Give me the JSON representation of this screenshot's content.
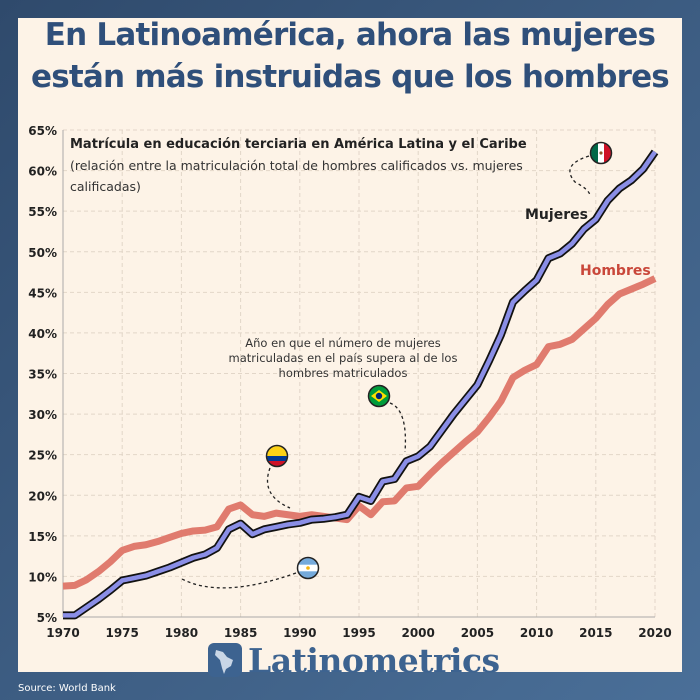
{
  "header": {
    "title_line1": "En Latinoamérica, ahora las mujeres",
    "title_line2": "están más instruidas que los hombres"
  },
  "chart_data": {
    "type": "line",
    "title": "Matrícula en educación terciaria en América Latina y el Caribe",
    "subtitle_line1": "(relación entre la matriculación total de hombres calificados vs. mujeres",
    "subtitle_line2": "calificadas)",
    "xlim": [
      1970,
      2020
    ],
    "ylim": [
      5,
      65
    ],
    "grid": true,
    "x_ticks": [
      "1970",
      "1975",
      "1980",
      "1985",
      "1990",
      "1995",
      "2000",
      "2005",
      "2010",
      "2015",
      "2020"
    ],
    "y_ticks": [
      "5%",
      "10%",
      "15%",
      "20%",
      "25%",
      "30%",
      "35%",
      "40%",
      "45%",
      "50%",
      "55%",
      "60%",
      "65%"
    ],
    "x": [
      1970,
      1971,
      1972,
      1973,
      1974,
      1975,
      1976,
      1977,
      1978,
      1979,
      1980,
      1981,
      1982,
      1983,
      1984,
      1985,
      1986,
      1987,
      1988,
      1989,
      1990,
      1991,
      1992,
      1993,
      1994,
      1995,
      1996,
      1997,
      1998,
      1999,
      2000,
      2001,
      2002,
      2003,
      2004,
      2005,
      2006,
      2007,
      2008,
      2009,
      2010,
      2011,
      2012,
      2013,
      2014,
      2015,
      2016,
      2017,
      2018,
      2019,
      2020
    ],
    "series": [
      {
        "name": "Hombres",
        "color": "#e07b6e",
        "values": [
          8.8,
          8.9,
          9.6,
          10.6,
          11.8,
          13.2,
          13.7,
          13.9,
          14.3,
          14.8,
          15.3,
          15.6,
          15.7,
          16.1,
          18.3,
          18.8,
          17.6,
          17.4,
          17.8,
          17.6,
          17.4,
          17.6,
          17.4,
          17.2,
          17.0,
          18.7,
          17.6,
          19.2,
          19.3,
          20.9,
          21.1,
          22.6,
          24.0,
          25.3,
          26.6,
          27.8,
          29.6,
          31.6,
          34.5,
          35.4,
          36.1,
          38.3,
          38.6,
          39.2,
          40.5,
          41.8,
          43.5,
          44.8,
          45.4,
          46.0,
          46.7
        ]
      },
      {
        "name": "Mujeres",
        "color": "#8a8ee6",
        "values": [
          5.2,
          5.2,
          6.2,
          7.2,
          8.3,
          9.5,
          9.8,
          10.1,
          10.6,
          11.1,
          11.7,
          12.3,
          12.7,
          13.5,
          15.8,
          16.5,
          15.2,
          15.8,
          16.1,
          16.4,
          16.6,
          17.0,
          17.1,
          17.3,
          17.6,
          19.8,
          19.3,
          21.7,
          22.0,
          24.2,
          24.8,
          26.0,
          28.0,
          30.0,
          31.8,
          33.6,
          36.6,
          39.8,
          43.8,
          45.2,
          46.5,
          49.2,
          49.8,
          51.0,
          52.8,
          54.0,
          56.3,
          57.8,
          58.8,
          60.2,
          62.3
        ]
      }
    ],
    "annotation": [
      "Año en que el número de mujeres",
      "matriculadas en el país supera al de los",
      "hombres matriculados"
    ],
    "flags": [
      {
        "country": "argentina-flag-icon",
        "year": 1980
      },
      {
        "country": "colombia-flag-icon",
        "year": 1990
      },
      {
        "country": "brazil-flag-icon",
        "year": 1999
      },
      {
        "country": "mexico-flag-icon",
        "year": 2014
      }
    ]
  },
  "footer": {
    "brand": "Latinometrics",
    "source": "Source: World Bank"
  }
}
